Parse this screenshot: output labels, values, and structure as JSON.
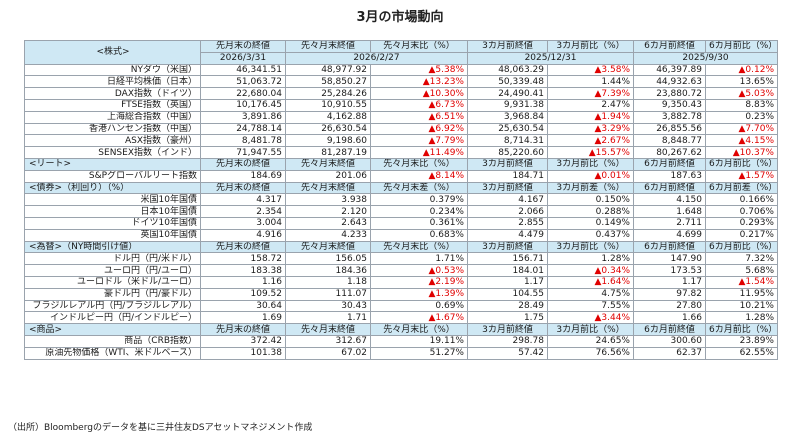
{
  "title": "3月の市場動向",
  "headers": {
    "stocks_label": "<株式>",
    "col1": "先月末の終値",
    "col2": "先々月末終値",
    "col3_ratio": "先々月末比（%）",
    "col4": "3カ月前終値",
    "col5_ratio": "3カ月前比（%）",
    "col6": "6カ月前終値",
    "col7_ratio": "6カ月前比（%）",
    "date1": "2026/3/31",
    "date2": "2026/2/27",
    "date4": "2025/12/31",
    "date6": "2025/9/30"
  },
  "stocks": [
    {
      "name": "NYダウ（米国）",
      "v1": "46,341.51",
      "v2": "48,977.92",
      "r2": "▲5.38%",
      "v3": "48,063.29",
      "r3": "▲3.58%",
      "v6": "46,397.89",
      "r6": "▲0.12%"
    },
    {
      "name": "日経平均株価（日本）",
      "v1": "51,063.72",
      "v2": "58,850.27",
      "r2": "▲13.23%",
      "v3": "50,339.48",
      "r3": "1.44%",
      "v6": "44,932.63",
      "r6": "13.65%"
    },
    {
      "name": "DAX指数（ドイツ）",
      "v1": "22,680.04",
      "v2": "25,284.26",
      "r2": "▲10.30%",
      "v3": "24,490.41",
      "r3": "▲7.39%",
      "v6": "23,880.72",
      "r6": "▲5.03%"
    },
    {
      "name": "FTSE指数（英国）",
      "v1": "10,176.45",
      "v2": "10,910.55",
      "r2": "▲6.73%",
      "v3": "9,931.38",
      "r3": "2.47%",
      "v6": "9,350.43",
      "r6": "8.83%"
    },
    {
      "name": "上海総合指数（中国）",
      "v1": "3,891.86",
      "v2": "4,162.88",
      "r2": "▲6.51%",
      "v3": "3,968.84",
      "r3": "▲1.94%",
      "v6": "3,882.78",
      "r6": "0.23%"
    },
    {
      "name": "香港ハンセン指数（中国）",
      "v1": "24,788.14",
      "v2": "26,630.54",
      "r2": "▲6.92%",
      "v3": "25,630.54",
      "r3": "▲3.29%",
      "v6": "26,855.56",
      "r6": "▲7.70%"
    },
    {
      "name": "ASX指数（豪州）",
      "v1": "8,481.78",
      "v2": "9,198.60",
      "r2": "▲7.79%",
      "v3": "8,714.31",
      "r3": "▲2.67%",
      "v6": "8,848.77",
      "r6": "▲4.15%"
    },
    {
      "name": "SENSEX指数（インド）",
      "v1": "71,947.55",
      "v2": "81,287.19",
      "r2": "▲11.49%",
      "v3": "85,220.60",
      "r3": "▲15.57%",
      "v6": "80,267.62",
      "r6": "▲10.37%"
    }
  ],
  "reit_header": {
    "label": "<リート>",
    "c1": "先月末の終値",
    "c2": "先々月末終値",
    "c3": "先々月末比（%）",
    "c4": "3カ月前終値",
    "c5": "3カ月前比（%）",
    "c6": "6カ月前終値",
    "c7": "6カ月前比（%）"
  },
  "reit": [
    {
      "name": "S&Pグローバルリート指数",
      "v1": "184.69",
      "v2": "201.06",
      "r2": "▲8.14%",
      "v3": "184.71",
      "r3": "▲0.01%",
      "v6": "187.63",
      "r6": "▲1.57%"
    }
  ],
  "bond_header": {
    "label": "<債券>（利回り）（%）",
    "c1": "先月末の終値",
    "c2": "先々月末終値",
    "c3": "先々月末差（%）",
    "c4": "3カ月前終値",
    "c5": "3カ月前差（%）",
    "c6": "6カ月前終値",
    "c7": "6カ月前差（%）"
  },
  "bonds": [
    {
      "name": "米国10年国債",
      "v1": "4.317",
      "v2": "3.938",
      "r2": "0.379%",
      "v3": "4.167",
      "r3": "0.150%",
      "v6": "4.150",
      "r6": "0.166%"
    },
    {
      "name": "日本10年国債",
      "v1": "2.354",
      "v2": "2.120",
      "r2": "0.234%",
      "v3": "2.066",
      "r3": "0.288%",
      "v6": "1.648",
      "r6": "0.706%"
    },
    {
      "name": "ドイツ10年国債",
      "v1": "3.004",
      "v2": "2.643",
      "r2": "0.361%",
      "v3": "2.855",
      "r3": "0.149%",
      "v6": "2.711",
      "r6": "0.293%"
    },
    {
      "name": "英国10年国債",
      "v1": "4.916",
      "v2": "4.233",
      "r2": "0.683%",
      "v3": "4.479",
      "r3": "0.437%",
      "v6": "4.699",
      "r6": "0.217%"
    }
  ],
  "fx_header": {
    "label": "<為替>（NY時間引け値）",
    "c1": "先月末の終値",
    "c2": "先々月末終値",
    "c3": "先々月末比（%）",
    "c4": "3カ月前終値",
    "c5": "3カ月前比（%）",
    "c6": "6カ月前終値",
    "c7": "6カ月前比（%）"
  },
  "fx": [
    {
      "name": "ドル円（円/米ドル）",
      "v1": "158.72",
      "v2": "156.05",
      "r2": "1.71%",
      "v3": "156.71",
      "r3": "1.28%",
      "v6": "147.90",
      "r6": "7.32%"
    },
    {
      "name": "ユーロ円（円/ユーロ）",
      "v1": "183.38",
      "v2": "184.36",
      "r2": "▲0.53%",
      "v3": "184.01",
      "r3": "▲0.34%",
      "v6": "173.53",
      "r6": "5.68%"
    },
    {
      "name": "ユーロドル（米ドル/ユーロ）",
      "v1": "1.16",
      "v2": "1.18",
      "r2": "▲2.19%",
      "v3": "1.17",
      "r3": "▲1.64%",
      "v6": "1.17",
      "r6": "▲1.54%"
    },
    {
      "name": "豪ドル円（円/豪ドル）",
      "v1": "109.52",
      "v2": "111.07",
      "r2": "▲1.39%",
      "v3": "104.55",
      "r3": "4.75%",
      "v6": "97.82",
      "r6": "11.95%"
    },
    {
      "name": "ブラジルレアル円（円/ブラジルレアル）",
      "v1": "30.64",
      "v2": "30.43",
      "r2": "0.69%",
      "v3": "28.49",
      "r3": "7.55%",
      "v6": "27.80",
      "r6": "10.21%"
    },
    {
      "name": "インドルピー円（円/インドルピー）",
      "v1": "1.69",
      "v2": "1.71",
      "r2": "▲1.67%",
      "v3": "1.75",
      "r3": "▲3.44%",
      "v6": "1.66",
      "r6": "1.28%"
    }
  ],
  "cmd_header": {
    "label": "<商品>",
    "c1": "先月末の終値",
    "c2": "先々月末終値",
    "c3": "先々月末比（%）",
    "c4": "3カ月前終値",
    "c5": "3カ月前比（%）",
    "c6": "6カ月前終値",
    "c7": "6カ月前比（%）"
  },
  "commodities": [
    {
      "name": "商品（CRB指数）",
      "v1": "372.42",
      "v2": "312.67",
      "r2": "19.11%",
      "v3": "298.78",
      "r3": "24.65%",
      "v6": "300.60",
      "r6": "23.89%"
    },
    {
      "name": "原油先物価格（WTI、米ドルベース）",
      "v1": "101.38",
      "v2": "67.02",
      "r2": "51.27%",
      "v3": "57.42",
      "r3": "76.56%",
      "v6": "62.37",
      "r6": "62.55%"
    }
  ],
  "source": "（出所）Bloombergのデータを基に三井住友DSアセットマネジメント作成",
  "colors": {
    "header_bg": "#cfe8f4",
    "negative": "#e00000",
    "border": "#9aa3ad"
  }
}
